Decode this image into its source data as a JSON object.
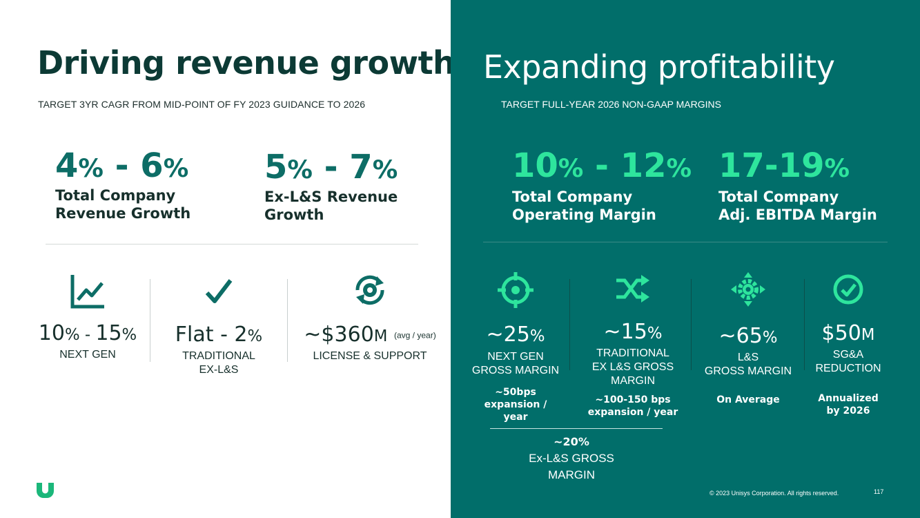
{
  "left": {
    "title": "Driving revenue growth",
    "subtitle": "TARGET 3YR CAGR FROM MID-POINT OF FY 2023 GUIDANCE TO 2026",
    "headline_metrics": [
      {
        "from": "4",
        "to": "6",
        "unit": "%",
        "sep": " - ",
        "label_line1": "Total Company",
        "label_line2": "Revenue Growth"
      },
      {
        "from": "5",
        "to": "7",
        "unit": "%",
        "sep": " - ",
        "label_line1": "Ex-L&S Revenue",
        "label_line2": "Growth"
      }
    ],
    "kpis": [
      {
        "icon": "line-chart-icon",
        "value_a": "10",
        "value_b": "15",
        "unit": "%",
        "sep": " - ",
        "caption_line1": "NEXT GEN",
        "caption_line2": ""
      },
      {
        "icon": "checkmark-icon",
        "value_prefix": "Flat - 2",
        "unit": "%",
        "caption_line1": "TRADITIONAL",
        "caption_line2": "EX-L&S"
      },
      {
        "icon": "cycle-gear-icon",
        "value_prefix": "~$360",
        "unit": "M",
        "suffix": "(avg / year)",
        "caption_line1": "LICENSE & SUPPORT",
        "caption_line2": ""
      }
    ]
  },
  "right": {
    "title": "Expanding profitability",
    "subtitle": "TARGET FULL-YEAR 2026 NON-GAAP MARGINS",
    "headline_metrics": [
      {
        "from": "10",
        "to": "12",
        "unit": "%",
        "sep": " - ",
        "label_line1": "Total Company",
        "label_line2": "Operating Margin"
      },
      {
        "value": "17-19",
        "unit": "%",
        "label_line1": "Total Company",
        "label_line2": "Adj. EBITDA Margin"
      }
    ],
    "kpis": [
      {
        "icon": "target-icon",
        "value": "~25",
        "unit": "%",
        "caption_lines": [
          "NEXT GEN",
          "GROSS MARGIN"
        ],
        "note_lines": [
          "~50bps",
          "expansion /",
          "year"
        ]
      },
      {
        "icon": "shuffle-icon",
        "value": "~15",
        "unit": "%",
        "caption_lines": [
          "TRADITIONAL",
          "EX L&S GROSS",
          "MARGIN"
        ],
        "note_lines": [
          "~100-150 bps",
          "expansion / year"
        ]
      },
      {
        "icon": "gear-arrows-icon",
        "value": "~65",
        "unit": "%",
        "caption_lines": [
          "L&S",
          "GROSS MARGIN"
        ],
        "note_lines": [
          "On Average"
        ]
      },
      {
        "icon": "check-circle-icon",
        "value": "$50",
        "unit": "M",
        "caption_lines": [
          "SG&A",
          "REDUCTION"
        ],
        "note_lines": [
          "Annualized",
          "by 2026"
        ]
      }
    ],
    "combined": {
      "value": "~20%",
      "caption_line1": "Ex-L&S GROSS",
      "caption_line2": "MARGIN"
    }
  },
  "footer": {
    "copyright": "© 2023 Unisys Corporation. All rights reserved.",
    "page_number": "117"
  },
  "colors": {
    "teal_panel": "#016e6a",
    "accent_green": "#2ee59d",
    "dark_teal_text": "#0d6d66",
    "logo_green": "#1bb77a"
  }
}
